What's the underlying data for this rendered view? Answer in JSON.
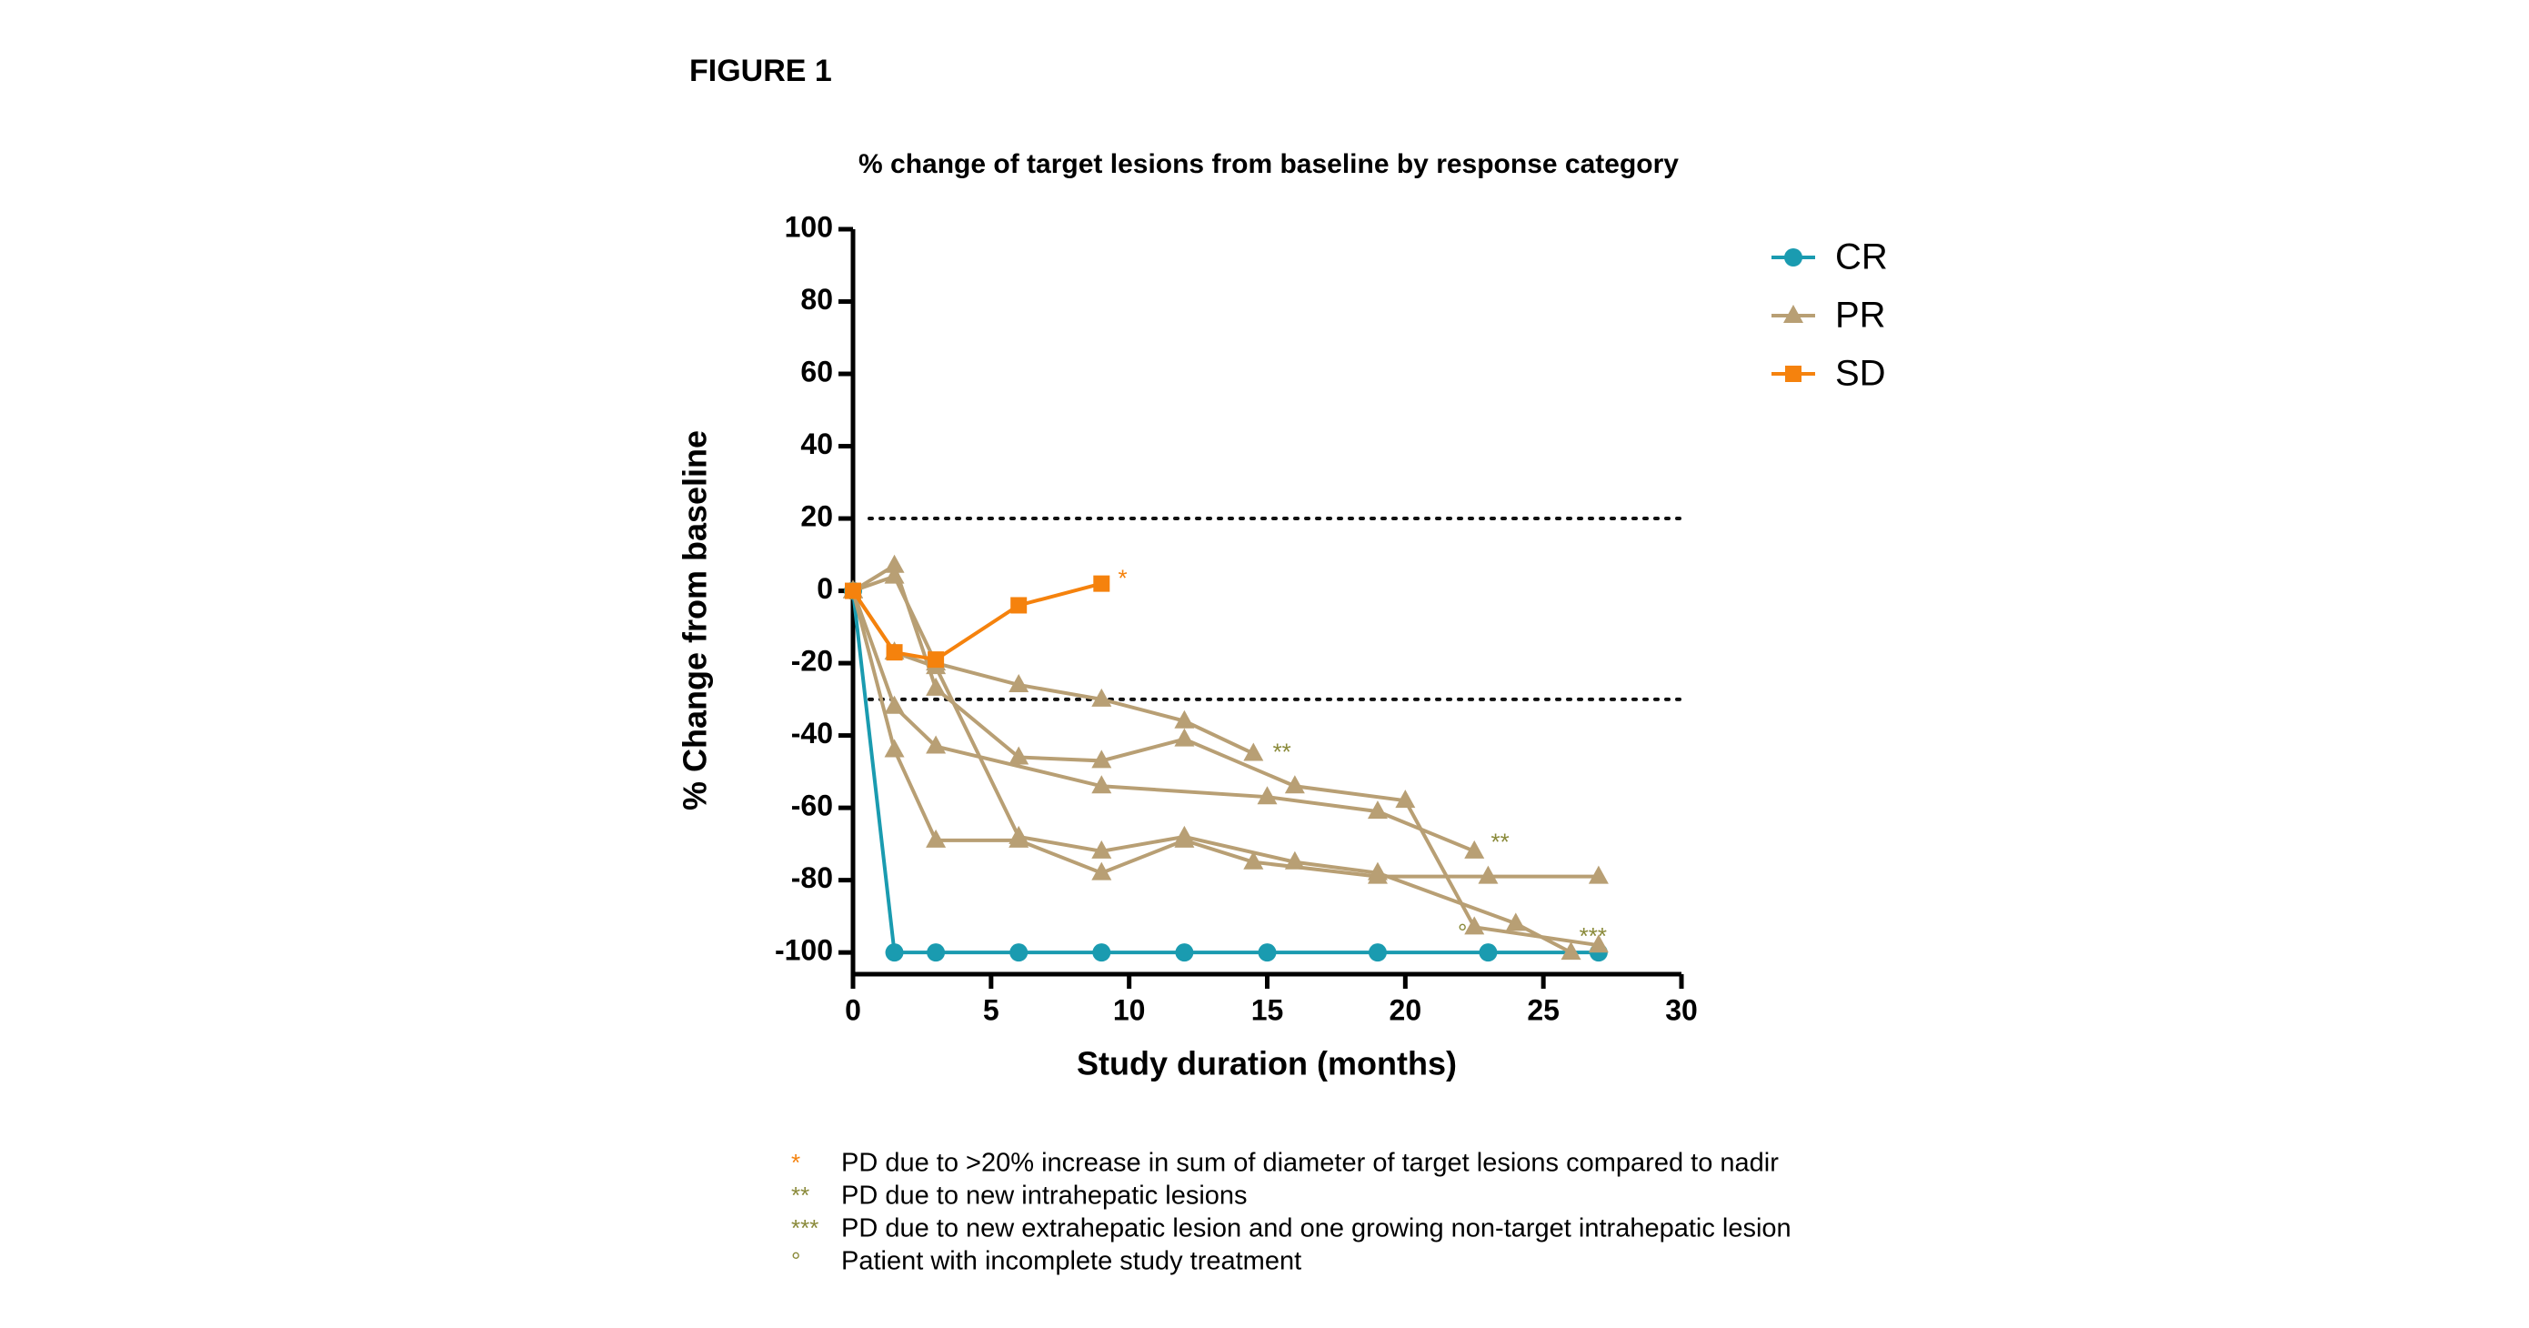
{
  "figure_label": "FIGURE 1",
  "chart_data": {
    "type": "line",
    "title": "% change of target lesions from baseline by response category",
    "x_label": "Study duration (months)",
    "y_label": "% Change from baseline",
    "xlim": [
      0,
      30
    ],
    "xticks": [
      0,
      5,
      10,
      15,
      20,
      25,
      30
    ],
    "ylim": [
      -106,
      100
    ],
    "yticks": [
      100,
      80,
      60,
      40,
      20,
      0,
      -20,
      -40,
      -60,
      -80,
      -100
    ],
    "reference_lines": [
      20,
      -30
    ],
    "legend": "upper right",
    "series": [
      {
        "name": "CR",
        "color": "#1a9bb0",
        "marker": "circle",
        "lines": [
          {
            "x": [
              0,
              1.5,
              3,
              6,
              9,
              12,
              15,
              19,
              23,
              27
            ],
            "values": [
              0,
              -100,
              -100,
              -100,
              -100,
              -100,
              -100,
              -100,
              -100,
              -100
            ]
          }
        ]
      },
      {
        "name": "PR",
        "color": "#b89f74",
        "marker": "triangle",
        "lines": [
          {
            "x": [
              0,
              1.5,
              3,
              6,
              9,
              12,
              14.5
            ],
            "values": [
              0,
              4,
              -20,
              -26,
              -30,
              -36,
              -45
            ]
          },
          {
            "x": [
              0,
              1.5,
              3,
              6,
              9,
              12,
              16,
              20,
              22.5,
              27
            ],
            "values": [
              0,
              7,
              -27,
              -46,
              -47,
              -41,
              -54,
              -58,
              -93,
              -98
            ]
          },
          {
            "x": [
              0,
              1.5,
              3,
              9,
              15,
              19,
              22.5
            ],
            "values": [
              0,
              -32,
              -43,
              -54,
              -57,
              -61,
              -72
            ]
          },
          {
            "x": [
              0,
              1.5,
              3,
              6,
              9,
              12,
              14.5,
              19,
              23,
              27
            ],
            "values": [
              0,
              -44,
              -69,
              -69,
              -78,
              -69,
              -75,
              -79,
              -79,
              -79
            ]
          },
          {
            "x": [
              0,
              1.5,
              3,
              6,
              9,
              12,
              16,
              19,
              24,
              26
            ],
            "values": [
              0,
              -17,
              -21,
              -68,
              -72,
              -68,
              -75,
              -78,
              -92,
              -100
            ]
          }
        ]
      },
      {
        "name": "SD",
        "color": "#f5820d",
        "marker": "square",
        "lines": [
          {
            "x": [
              0,
              1.5,
              3,
              6,
              9
            ],
            "values": [
              0,
              -17,
              -19,
              -4,
              2
            ]
          }
        ]
      }
    ],
    "annotations": [
      {
        "text": "*",
        "x": 9.6,
        "y": 3,
        "color": "#f5820d"
      },
      {
        "text": "**",
        "x": 15.2,
        "y": -45,
        "color": "#8a8a3a"
      },
      {
        "text": "**",
        "x": 23.1,
        "y": -70,
        "color": "#8a8a3a"
      },
      {
        "text": "°",
        "x": 21.9,
        "y": -95,
        "color": "#8a8a3a"
      },
      {
        "text": "***",
        "x": 26.3,
        "y": -96,
        "color": "#8a8a3a"
      }
    ]
  },
  "footnotes": [
    {
      "symbol": "*",
      "color": "#f5820d",
      "text": "PD due to >20% increase in sum of diameter of target lesions compared to nadir"
    },
    {
      "symbol": "**",
      "color": "#8a8a3a",
      "text": "PD due to new intrahepatic lesions"
    },
    {
      "symbol": "***",
      "color": "#8a8a3a",
      "text": "PD due to new extrahepatic lesion and one growing non-target intrahepatic lesion"
    },
    {
      "symbol": "°",
      "color": "#8a8a3a",
      "text": "Patient with incomplete study treatment"
    }
  ]
}
